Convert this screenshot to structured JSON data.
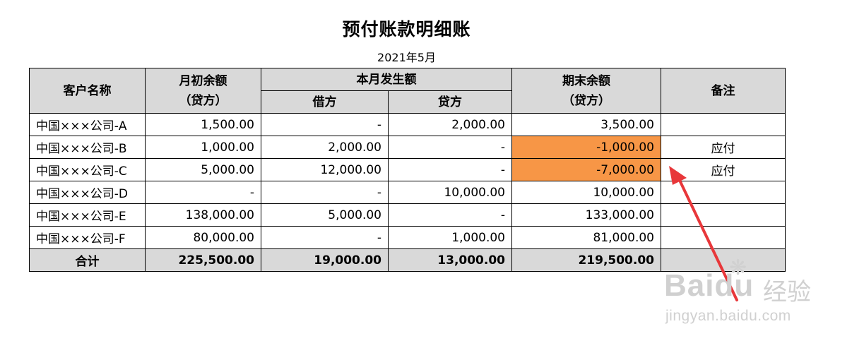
{
  "document": {
    "title": "预付账款明细账",
    "period": "2021年5月"
  },
  "table": {
    "headers": {
      "customer": "客户名称",
      "opening_line1": "月初余额",
      "opening_line2": "（贷方）",
      "current": "本月发生额",
      "debit": "借方",
      "credit": "贷方",
      "closing_line1": "期末余额",
      "closing_line2": "（贷方）",
      "note": "备注"
    },
    "rows": [
      {
        "customer": "中国×××公司-A",
        "opening": "1,500.00",
        "debit": "-",
        "credit": "2,000.00",
        "closing": "3,500.00",
        "note": ""
      },
      {
        "customer": "中国×××公司-B",
        "opening": "1,000.00",
        "debit": "2,000.00",
        "credit": "-",
        "closing": "-1,000.00",
        "note": "应付"
      },
      {
        "customer": "中国×××公司-C",
        "opening": "5,000.00",
        "debit": "12,000.00",
        "credit": "-",
        "closing": "-7,000.00",
        "note": "应付"
      },
      {
        "customer": "中国×××公司-D",
        "opening": "-",
        "debit": "-",
        "credit": "10,000.00",
        "closing": "10,000.00",
        "note": ""
      },
      {
        "customer": "中国×××公司-E",
        "opening": "138,000.00",
        "debit": "5,000.00",
        "credit": "-",
        "closing": "133,000.00",
        "note": ""
      },
      {
        "customer": "中国×××公司-F",
        "opening": "80,000.00",
        "debit": "-",
        "credit": "1,000.00",
        "closing": "81,000.00",
        "note": ""
      }
    ],
    "total": {
      "label": "合计",
      "opening": "225,500.00",
      "debit": "19,000.00",
      "credit": "13,000.00",
      "closing": "219,500.00",
      "note": ""
    }
  },
  "styles": {
    "header_bg": "#d9d9d9",
    "highlight_bg": "#f79646",
    "arrow_color": "#e8373a"
  },
  "watermark": {
    "logo": "Baidu",
    "cn": "经验",
    "url": "jingyan.baidu.com"
  }
}
